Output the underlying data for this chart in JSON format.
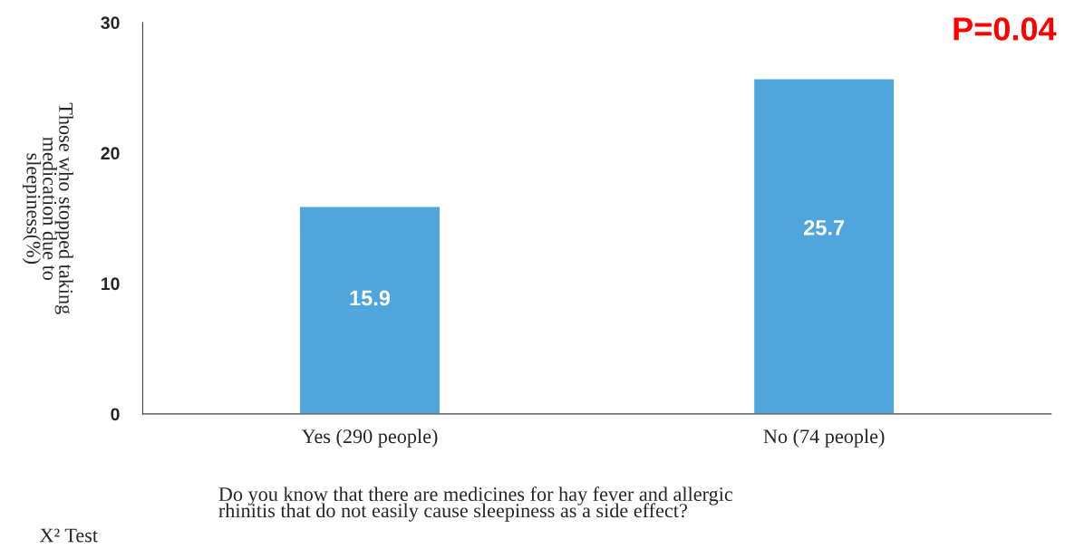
{
  "chart_data": {
    "type": "bar",
    "categories": [
      "Yes (290 people)",
      "No (74 people)"
    ],
    "values": [
      15.9,
      25.7
    ],
    "color": "#4fa5dc",
    "data_labels": true,
    "ylabel": "Those who stopped taking\nmedication due to\nsleepiness(%)",
    "xlabel": "Do you know that there are medicines for hay fever and allergic\nrhinitis that do not easily cause sleepiness as a side effect?",
    "annotations": [
      "P=0.04",
      "X² Test"
    ],
    "ylim": [
      0,
      30
    ],
    "yticks": [
      0,
      10,
      20,
      30
    ],
    "grid": false,
    "legend": false
  }
}
